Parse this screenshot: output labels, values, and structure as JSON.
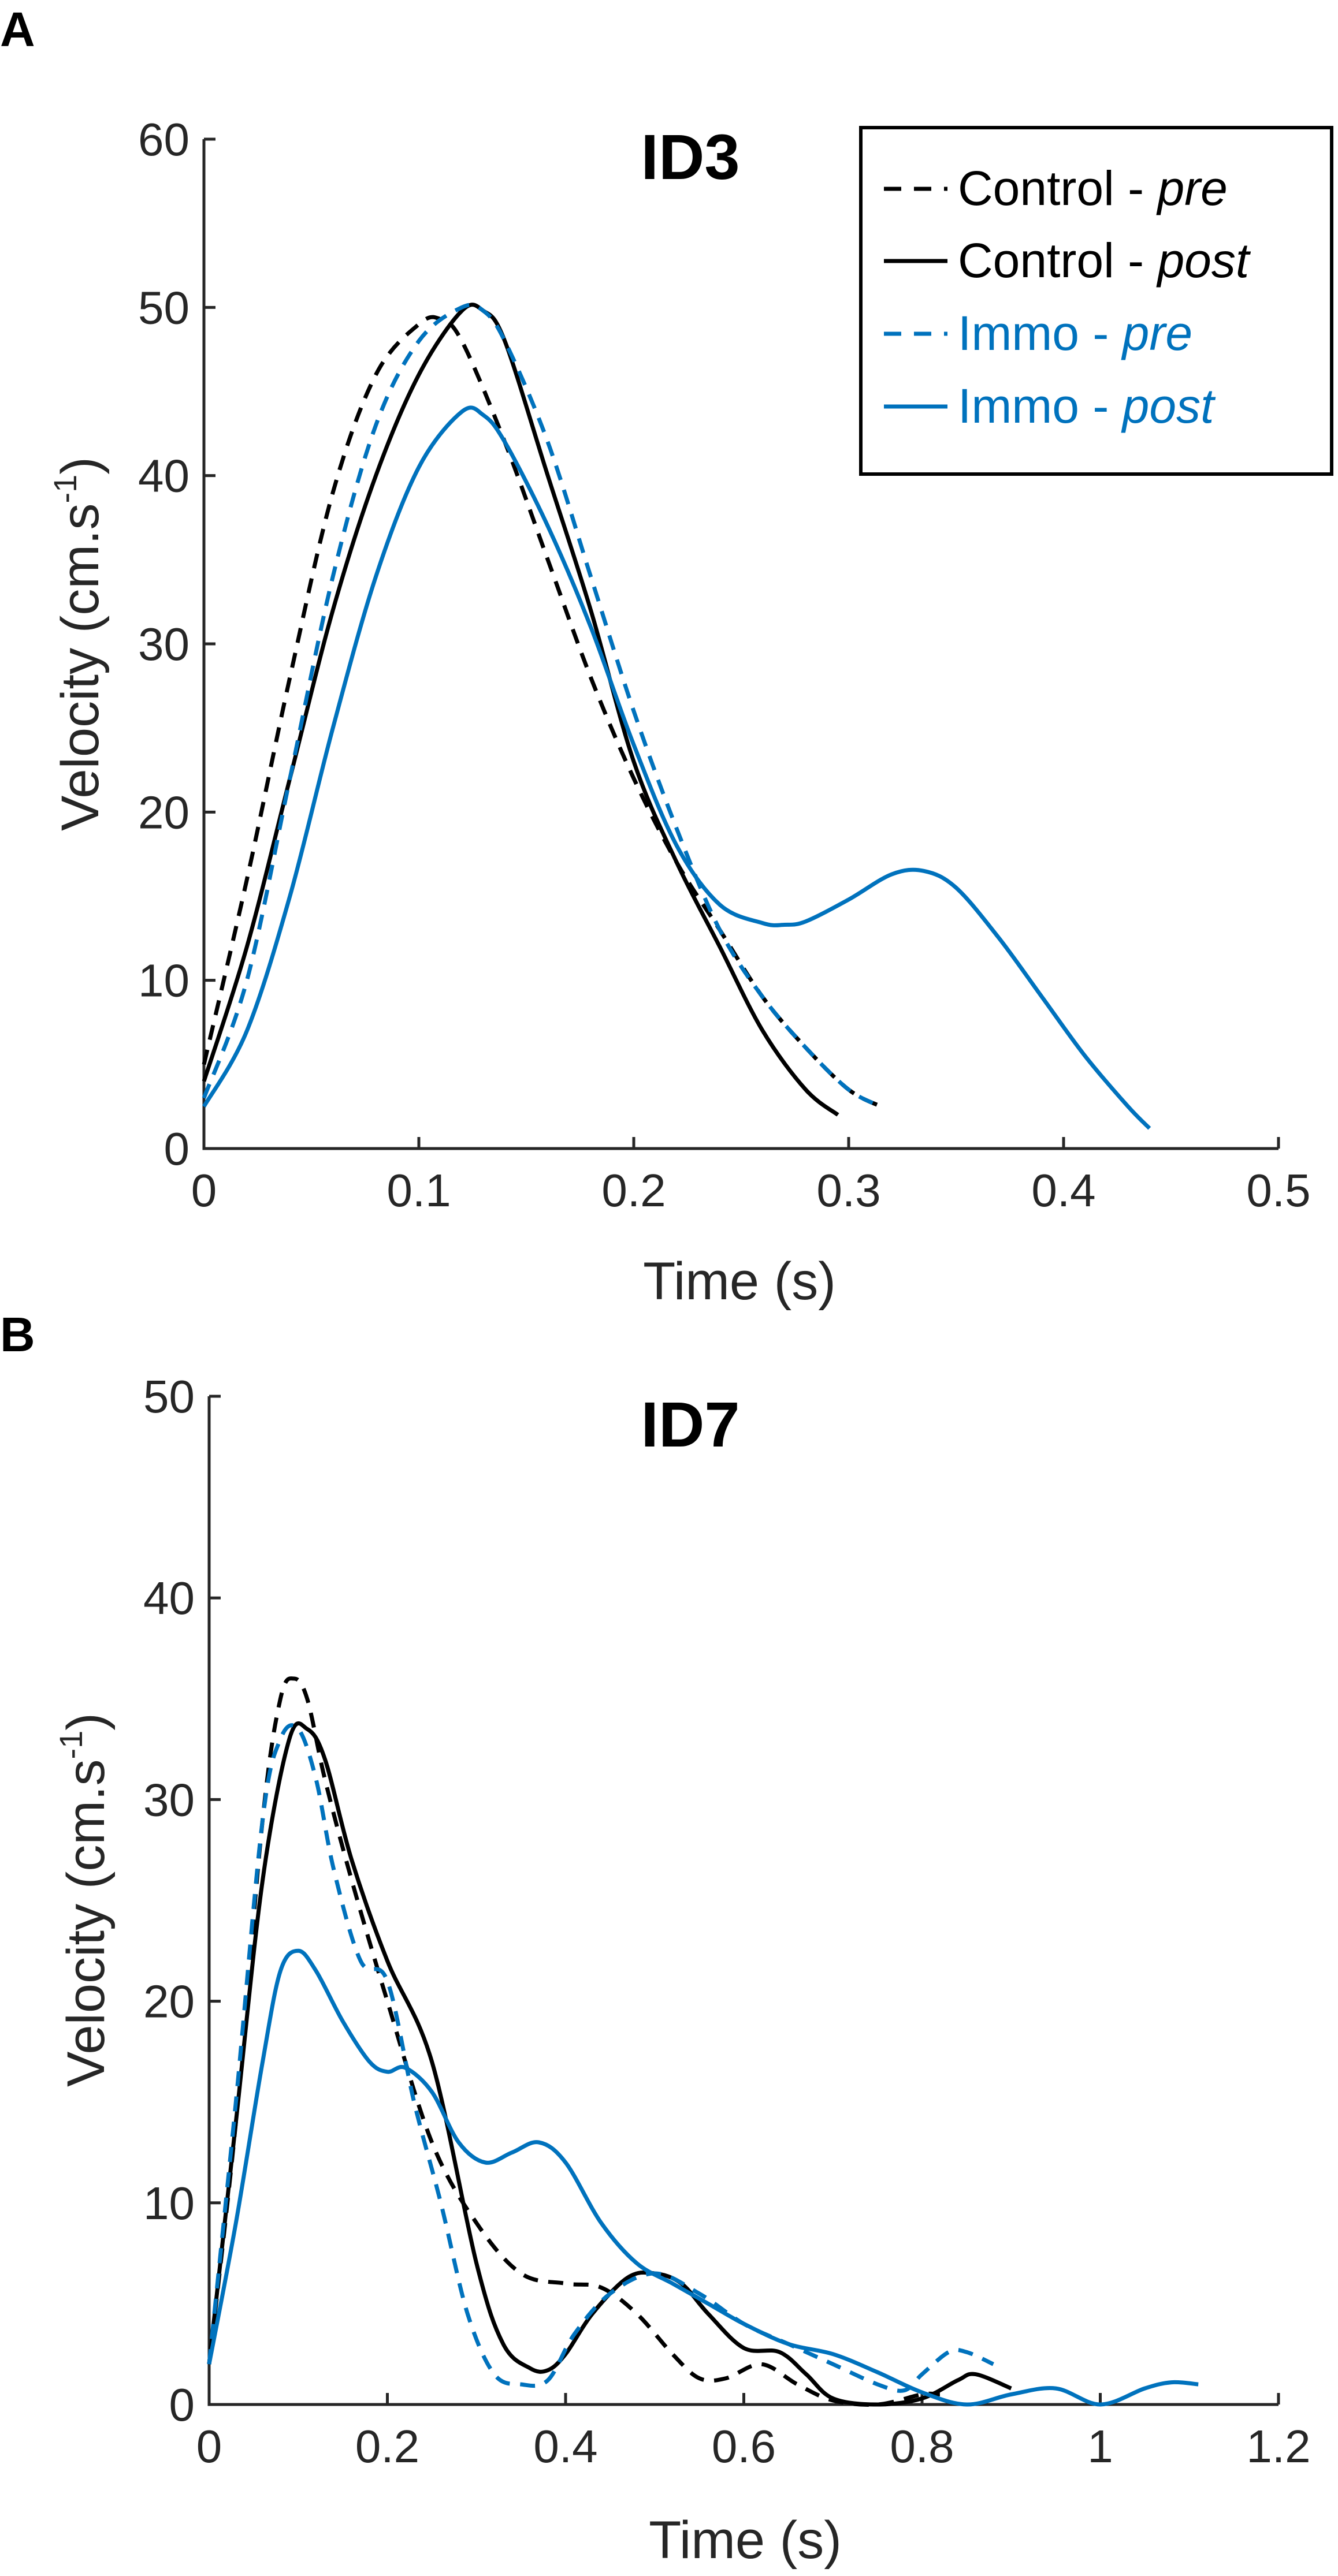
{
  "chart_data": [
    {
      "panel": "A",
      "type": "line",
      "title": "ID3",
      "xlabel": "Time (s)",
      "ylabel": "Velocity (cm.s",
      "ylabel_sup": "-1",
      "ylabel_close": ")",
      "xlim": [
        0,
        0.5
      ],
      "ylim": [
        0,
        60
      ],
      "xticks": [
        0,
        0.1,
        0.2,
        0.3,
        0.4,
        0.5
      ],
      "xtick_labels": [
        "0",
        "0.1",
        "0.2",
        "0.3",
        "0.4",
        "0.5"
      ],
      "yticks": [
        0,
        10,
        20,
        30,
        40,
        50,
        60
      ],
      "ytick_labels": [
        "0",
        "10",
        "20",
        "30",
        "40",
        "50",
        "60"
      ],
      "legend_position": "top-right",
      "series": [
        {
          "name_main": "Control - ",
          "name_italic": "pre",
          "color": "#000000",
          "dash": true,
          "x": [
            0,
            0.02,
            0.04,
            0.06,
            0.08,
            0.1,
            0.11,
            0.12,
            0.14,
            0.16,
            0.18,
            0.2,
            0.22,
            0.24,
            0.26,
            0.28,
            0.3,
            0.315
          ],
          "y": [
            5,
            16,
            28,
            39,
            46,
            49,
            49.3,
            48,
            42,
            35,
            28,
            22,
            17,
            13,
            9,
            6,
            3.5,
            2.5
          ]
        },
        {
          "name_main": "Control - ",
          "name_italic": "post",
          "color": "#000000",
          "dash": false,
          "x": [
            0,
            0.02,
            0.04,
            0.06,
            0.08,
            0.1,
            0.12,
            0.13,
            0.14,
            0.16,
            0.18,
            0.2,
            0.22,
            0.24,
            0.26,
            0.28,
            0.295
          ],
          "y": [
            4,
            12,
            22,
            32,
            40,
            46,
            49.8,
            49.8,
            48,
            40,
            32,
            23,
            17,
            12,
            7,
            3.5,
            2
          ]
        },
        {
          "name_main": "Immo - ",
          "name_italic": "pre",
          "color": "#0072BD",
          "dash": true,
          "x": [
            0,
            0.02,
            0.04,
            0.06,
            0.08,
            0.1,
            0.12,
            0.13,
            0.14,
            0.16,
            0.18,
            0.2,
            0.22,
            0.24,
            0.26,
            0.28,
            0.3,
            0.315
          ],
          "y": [
            3,
            10,
            22,
            34,
            43,
            48,
            50,
            49.8,
            48,
            42,
            34,
            26,
            19,
            13,
            9,
            6,
            3.5,
            2.5
          ]
        },
        {
          "name_main": "Immo - ",
          "name_italic": "post",
          "color": "#0072BD",
          "dash": false,
          "x": [
            0,
            0.02,
            0.04,
            0.06,
            0.08,
            0.1,
            0.12,
            0.13,
            0.14,
            0.16,
            0.18,
            0.2,
            0.22,
            0.24,
            0.26,
            0.27,
            0.28,
            0.3,
            0.32,
            0.335,
            0.35,
            0.37,
            0.39,
            0.41,
            0.43,
            0.44
          ],
          "y": [
            2.5,
            7,
            15,
            25,
            34,
            40.5,
            43.8,
            43.6,
            42,
            37,
            31,
            24,
            18,
            14.5,
            13.4,
            13.3,
            13.5,
            14.8,
            16.3,
            16.5,
            15.5,
            12.5,
            9,
            5.5,
            2.5,
            1.2
          ]
        }
      ]
    },
    {
      "panel": "B",
      "type": "line",
      "title": "ID7",
      "xlabel": "Time (s)",
      "ylabel": "Velocity (cm.s",
      "ylabel_sup": "-1",
      "ylabel_close": ")",
      "xlim": [
        0,
        1.2
      ],
      "ylim": [
        0,
        50
      ],
      "xticks": [
        0,
        0.2,
        0.4,
        0.6,
        0.8,
        1,
        1.2
      ],
      "xtick_labels": [
        "0",
        "0.2",
        "0.4",
        "0.6",
        "0.8",
        "1",
        "1.2"
      ],
      "yticks": [
        0,
        10,
        20,
        30,
        40,
        50
      ],
      "ytick_labels": [
        "0",
        "10",
        "20",
        "30",
        "40",
        "50"
      ],
      "series": [
        {
          "name_main": "Control - ",
          "name_italic": "pre",
          "color": "#000000",
          "dash": true,
          "x": [
            0,
            0.03,
            0.06,
            0.08,
            0.095,
            0.11,
            0.13,
            0.16,
            0.2,
            0.25,
            0.3,
            0.35,
            0.4,
            0.44,
            0.48,
            0.52,
            0.55,
            0.58,
            0.62,
            0.66,
            0.7,
            0.75,
            0.8,
            0.82
          ],
          "y": [
            2,
            14,
            29,
            35,
            36,
            35,
            31,
            26,
            20,
            13,
            9,
            6.5,
            6,
            5.8,
            4.5,
            2.5,
            1.3,
            1.3,
            2,
            1,
            0.2,
            0,
            0.5,
            0.5
          ]
        },
        {
          "name_main": "Control - ",
          "name_italic": "post",
          "color": "#000000",
          "dash": false,
          "x": [
            0,
            0.03,
            0.06,
            0.09,
            0.11,
            0.13,
            0.16,
            0.2,
            0.25,
            0.3,
            0.33,
            0.36,
            0.38,
            0.4,
            0.43,
            0.47,
            0.5,
            0.53,
            0.56,
            0.6,
            0.64,
            0.67,
            0.7,
            0.75,
            0.8,
            0.84,
            0.86,
            0.9
          ],
          "y": [
            2,
            14,
            26,
            33,
            33.5,
            32,
            27,
            22,
            17,
            7,
            3,
            1.8,
            1.7,
            2.5,
            4.5,
            6.3,
            6.5,
            6,
            4.5,
            2.8,
            2.6,
            1.5,
            0.3,
            0,
            0.3,
            1.2,
            1.5,
            0.8
          ]
        },
        {
          "name_main": "Immo - ",
          "name_italic": "pre",
          "color": "#0072BD",
          "dash": true,
          "x": [
            0,
            0.03,
            0.06,
            0.08,
            0.1,
            0.12,
            0.14,
            0.17,
            0.2,
            0.23,
            0.26,
            0.29,
            0.32,
            0.35,
            0.38,
            0.41,
            0.45,
            0.5,
            0.55,
            0.6,
            0.65,
            0.7,
            0.75,
            0.78,
            0.8,
            0.83,
            0.85,
            0.88
          ],
          "y": [
            2,
            15,
            29,
            33,
            33.5,
            31,
            26.5,
            22,
            21,
            15,
            10,
            4.5,
            1.5,
            1,
            1.2,
            3.5,
            5.5,
            6.5,
            5.5,
            4,
            3,
            2,
            1,
            0.7,
            1.5,
            2.6,
            2.6,
            2
          ]
        },
        {
          "name_main": "Immo - ",
          "name_italic": "post",
          "color": "#0072BD",
          "dash": false,
          "x": [
            0,
            0.03,
            0.06,
            0.08,
            0.1,
            0.12,
            0.15,
            0.18,
            0.2,
            0.22,
            0.25,
            0.28,
            0.31,
            0.34,
            0.37,
            0.4,
            0.44,
            0.48,
            0.52,
            0.56,
            0.6,
            0.65,
            0.7,
            0.75,
            0.8,
            0.85,
            0.9,
            0.95,
            1,
            1.05,
            1.08,
            1.11
          ],
          "y": [
            2,
            9,
            17,
            21.5,
            22.5,
            21.5,
            19,
            17,
            16.5,
            16.7,
            15.5,
            13,
            12,
            12.5,
            13,
            12,
            9,
            7,
            6,
            5,
            4,
            3,
            2.5,
            1.6,
            0.6,
            0,
            0.5,
            0.8,
            0,
            0.8,
            1.1,
            1
          ]
        }
      ]
    }
  ]
}
